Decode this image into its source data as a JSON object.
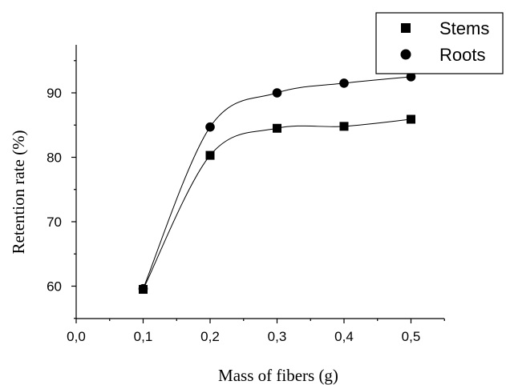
{
  "chart_data": {
    "type": "scatter",
    "title": "",
    "xlabel": "Mass of fibers (g)",
    "ylabel": "Retention rate (%)",
    "xlim": [
      0.0,
      0.55
    ],
    "ylim": [
      55,
      97
    ],
    "x_ticks": [
      "0,0",
      "0,1",
      "0,2",
      "0,3",
      "0,4",
      "0,5"
    ],
    "y_ticks": [
      "60",
      "70",
      "80",
      "90"
    ],
    "legend_position": "top-right",
    "grid": false,
    "series": [
      {
        "name": "Stems",
        "marker": "square",
        "color": "#000000",
        "x": [
          0.1,
          0.2,
          0.3,
          0.4,
          0.5
        ],
        "y": [
          59.5,
          80.3,
          84.5,
          84.8,
          85.9
        ]
      },
      {
        "name": "Roots",
        "marker": "circle",
        "color": "#000000",
        "x": [
          0.1,
          0.2,
          0.3,
          0.4,
          0.5
        ],
        "y": [
          59.6,
          84.7,
          90.0,
          91.5,
          92.5
        ]
      }
    ]
  }
}
